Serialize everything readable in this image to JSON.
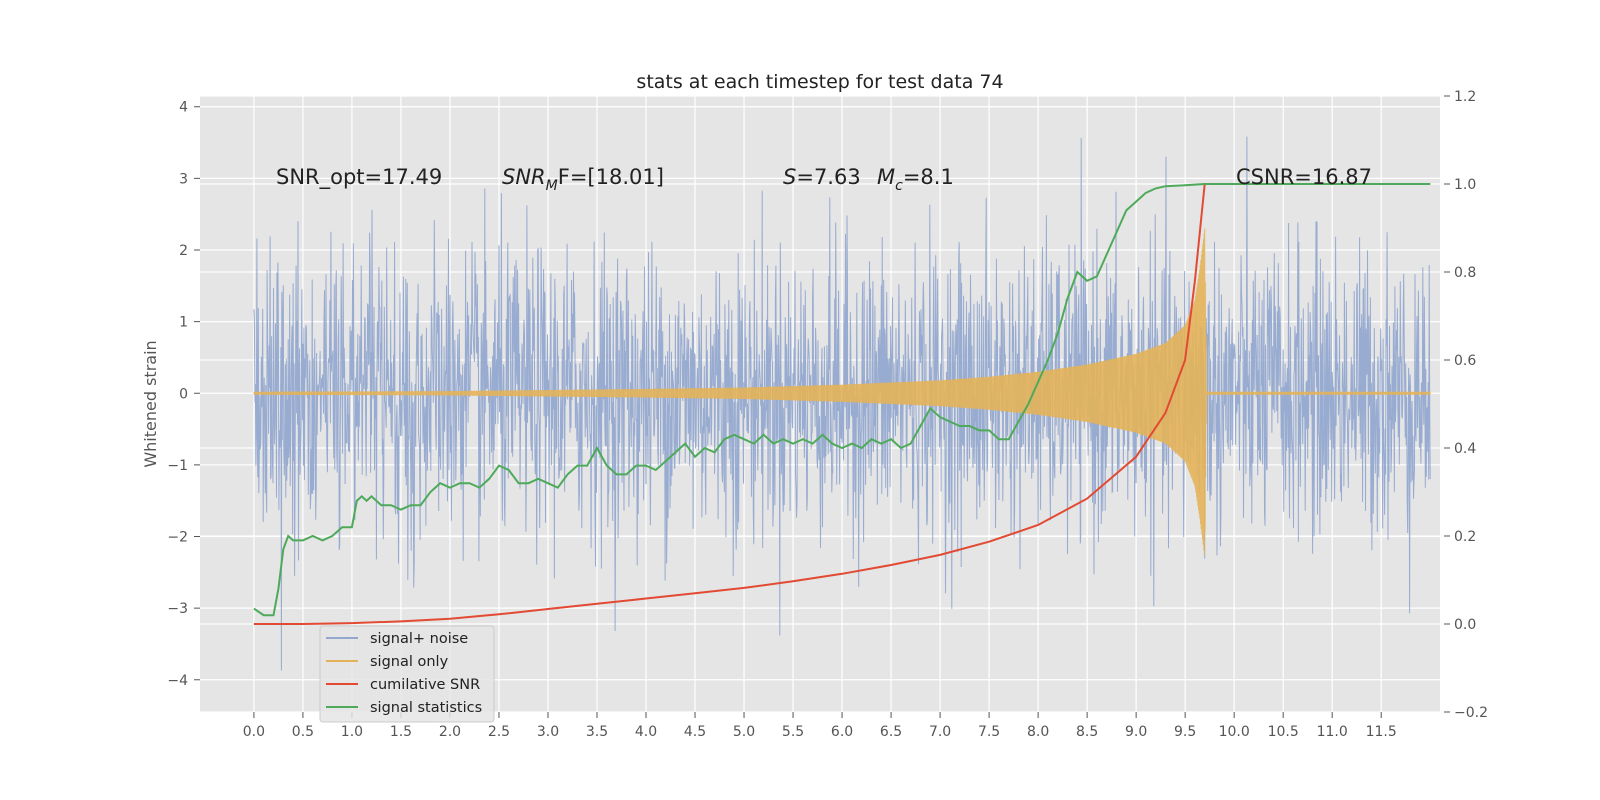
{
  "chart_data": {
    "type": "line",
    "title": "stats at each timestep for test data 74",
    "ylabel": "Whitened strain",
    "xlim": [
      -0.55,
      12.1
    ],
    "ylim": [
      -4.45,
      4.15
    ],
    "y2lim": [
      -0.2,
      1.2
    ],
    "xticks": [
      "0.0",
      "0.5",
      "1.0",
      "1.5",
      "2.0",
      "2.5",
      "3.0",
      "3.5",
      "4.0",
      "4.5",
      "5.0",
      "5.5",
      "6.0",
      "6.5",
      "7.0",
      "7.5",
      "8.0",
      "8.5",
      "9.0",
      "9.5",
      "10.0",
      "10.5",
      "11.0",
      "11.5"
    ],
    "yticks": [
      "4",
      "3",
      "2",
      "1",
      "0",
      "−1",
      "−2",
      "−3",
      "−4"
    ],
    "y2ticks": [
      "1.2",
      "1.0",
      "0.8",
      "0.6",
      "0.4",
      "0.2",
      "0.0",
      "−0.2"
    ],
    "grid": true,
    "legend_position": "lower-left",
    "colors": {
      "background": "#e5e5e5",
      "noise": "#94a8cf",
      "signal": "#e3b259",
      "snr": "#e24a33",
      "stats": "#4eaa5a"
    },
    "annotations": [
      {
        "id": "snr_opt",
        "text": "SNR_opt=17.49"
      },
      {
        "id": "snr_mf",
        "base": "SNR",
        "sub": "M",
        "rest": "F=[18.01]"
      },
      {
        "id": "s",
        "base": "S",
        "rest": "=7.63"
      },
      {
        "id": "mc",
        "base": "M",
        "sub": "c",
        "rest": "=8.1"
      },
      {
        "id": "csnr",
        "text": "CSNR=16.87"
      }
    ],
    "series": [
      {
        "name": "signal+ noise",
        "axis": "left",
        "description": "whitened noisy strain, roughly gaussian with std about 1.0, spanning t=0 to 12",
        "envelope_std": 1.0,
        "x_range": [
          0.0,
          12.0
        ]
      },
      {
        "name": "signal only",
        "axis": "left",
        "amplitude_envelope": {
          "x": [
            0.0,
            2.0,
            4.0,
            5.0,
            6.0,
            7.0,
            7.5,
            8.0,
            8.5,
            9.0,
            9.3,
            9.5,
            9.6,
            9.65,
            9.7,
            9.72
          ],
          "y": [
            0.02,
            0.03,
            0.06,
            0.08,
            0.12,
            0.18,
            0.23,
            0.3,
            0.4,
            0.55,
            0.7,
            0.95,
            1.3,
            1.75,
            2.3,
            0.05
          ]
        }
      },
      {
        "name": "cumilative SNR",
        "axis": "right",
        "x": [
          0.0,
          0.5,
          1.0,
          1.5,
          2.0,
          2.5,
          3.0,
          3.5,
          4.0,
          4.5,
          5.0,
          5.5,
          6.0,
          6.5,
          7.0,
          7.5,
          8.0,
          8.5,
          9.0,
          9.3,
          9.5,
          9.6,
          9.7,
          10.0,
          11.0,
          12.0
        ],
        "y": [
          0.0,
          0.0,
          0.002,
          0.006,
          0.012,
          0.022,
          0.034,
          0.046,
          0.058,
          0.07,
          0.082,
          0.097,
          0.114,
          0.134,
          0.157,
          0.187,
          0.225,
          0.285,
          0.38,
          0.48,
          0.6,
          0.78,
          1.0,
          1.0,
          1.0,
          1.0
        ]
      },
      {
        "name": "signal statistics",
        "axis": "right",
        "x": [
          0.0,
          0.1,
          0.2,
          0.25,
          0.3,
          0.35,
          0.4,
          0.5,
          0.6,
          0.7,
          0.8,
          0.9,
          1.0,
          1.05,
          1.1,
          1.15,
          1.2,
          1.3,
          1.4,
          1.5,
          1.6,
          1.7,
          1.8,
          1.9,
          2.0,
          2.1,
          2.2,
          2.3,
          2.4,
          2.5,
          2.6,
          2.7,
          2.8,
          2.9,
          3.0,
          3.1,
          3.2,
          3.3,
          3.4,
          3.5,
          3.6,
          3.7,
          3.8,
          3.9,
          4.0,
          4.1,
          4.2,
          4.3,
          4.4,
          4.5,
          4.6,
          4.7,
          4.8,
          4.9,
          5.0,
          5.1,
          5.2,
          5.3,
          5.4,
          5.5,
          5.6,
          5.7,
          5.8,
          5.9,
          6.0,
          6.1,
          6.2,
          6.3,
          6.4,
          6.5,
          6.6,
          6.7,
          6.8,
          6.9,
          7.0,
          7.1,
          7.2,
          7.3,
          7.4,
          7.5,
          7.6,
          7.7,
          7.8,
          7.9,
          8.0,
          8.1,
          8.2,
          8.3,
          8.4,
          8.5,
          8.6,
          8.7,
          8.8,
          8.9,
          9.0,
          9.1,
          9.2,
          9.3,
          9.5,
          9.7,
          10.0,
          11.0,
          12.0
        ],
        "y": [
          0.035,
          0.02,
          0.02,
          0.08,
          0.17,
          0.2,
          0.19,
          0.19,
          0.2,
          0.19,
          0.2,
          0.22,
          0.22,
          0.28,
          0.29,
          0.28,
          0.29,
          0.27,
          0.27,
          0.26,
          0.27,
          0.27,
          0.3,
          0.32,
          0.31,
          0.32,
          0.32,
          0.31,
          0.33,
          0.36,
          0.35,
          0.32,
          0.32,
          0.33,
          0.32,
          0.31,
          0.34,
          0.36,
          0.36,
          0.4,
          0.36,
          0.34,
          0.34,
          0.36,
          0.36,
          0.35,
          0.37,
          0.39,
          0.41,
          0.38,
          0.4,
          0.39,
          0.42,
          0.43,
          0.42,
          0.41,
          0.43,
          0.41,
          0.42,
          0.41,
          0.42,
          0.41,
          0.43,
          0.41,
          0.4,
          0.41,
          0.4,
          0.42,
          0.41,
          0.42,
          0.4,
          0.41,
          0.45,
          0.49,
          0.47,
          0.46,
          0.45,
          0.45,
          0.44,
          0.44,
          0.42,
          0.42,
          0.46,
          0.5,
          0.55,
          0.6,
          0.66,
          0.74,
          0.8,
          0.78,
          0.79,
          0.84,
          0.89,
          0.94,
          0.96,
          0.98,
          0.99,
          0.995,
          0.997,
          1.0,
          1.0,
          1.0,
          1.0
        ]
      }
    ]
  },
  "legend": {
    "items": [
      {
        "label": "signal+ noise"
      },
      {
        "label": "signal only"
      },
      {
        "label": "cumilative SNR"
      },
      {
        "label": "signal statistics"
      }
    ]
  }
}
